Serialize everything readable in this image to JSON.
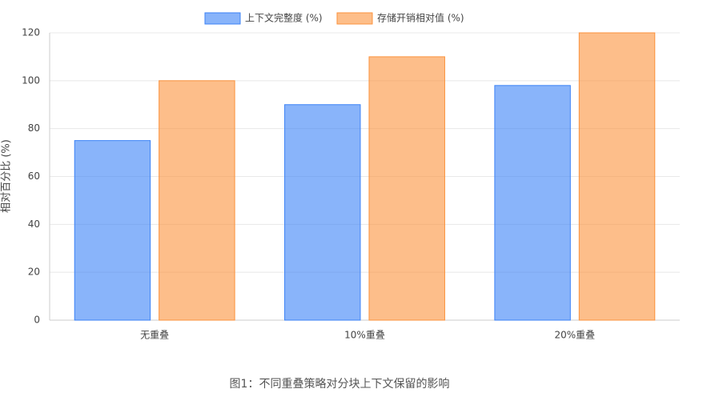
{
  "chart_data": {
    "type": "bar",
    "caption": "图1：不同重叠策略对分块上下文保留的影响",
    "y_label": "相对百分比 (%)",
    "categories": [
      "无重叠",
      "10%重叠",
      "20%重叠"
    ],
    "series": [
      {
        "name": "上下文完整度 (%)",
        "color": "#3b82f6",
        "values": [
          75,
          90,
          98
        ]
      },
      {
        "name": "存储开销相对值 (%)",
        "color": "#fb923c",
        "values": [
          100,
          110,
          120
        ]
      }
    ],
    "ylim": [
      0,
      120
    ],
    "yticks": [
      0,
      20,
      40,
      60,
      80,
      100,
      120
    ],
    "grid": true,
    "legend": "top"
  }
}
